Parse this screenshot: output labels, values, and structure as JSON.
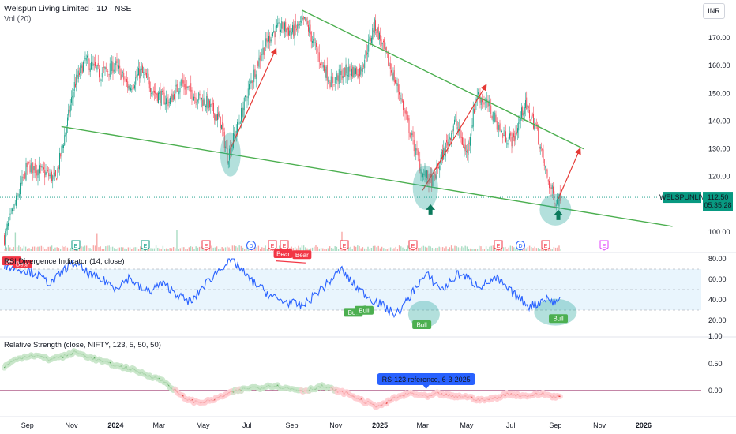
{
  "header": {
    "title": "Welspun Living Limited · 1D · NSE",
    "volume_label": "Vol (20)",
    "currency": "INR"
  },
  "price_tag": {
    "symbol": "WELSPUNLIV",
    "price": "112.50",
    "countdown": "05:35:28",
    "color": "#089981"
  },
  "colors": {
    "up": "#089981",
    "down": "#f23645",
    "trendline": "#4caf50",
    "arrow": "#e53935",
    "highlight": "#26a69a",
    "rsi_line": "#2962ff",
    "rsi_band": "#e3f2fd",
    "rs_zero": "#880e4f"
  },
  "chart_data": [
    {
      "type": "candlestick",
      "title": "Welspun Living Limited · 1D · NSE",
      "x_ticks": [
        "Sep",
        "Nov",
        "2024",
        "Mar",
        "May",
        "Jul",
        "Sep",
        "Nov",
        "2025",
        "Mar",
        "May",
        "Jul",
        "Sep",
        "Nov",
        "2026"
      ],
      "y_ticks": [
        100,
        110,
        120,
        130,
        140,
        150,
        160,
        170
      ],
      "ylim": [
        96,
        178
      ],
      "y_tick_labels": [
        "100.00",
        "110.00",
        "120.00",
        "130.00",
        "140.00",
        "150.00",
        "160.00",
        "170.00"
      ],
      "last_price": 112.5,
      "close_series": [
        {
          "date": "2023-07-31",
          "close": 98
        },
        {
          "date": "2023-08-15",
          "close": 110
        },
        {
          "date": "2023-09-01",
          "close": 124
        },
        {
          "date": "2023-09-20",
          "close": 122
        },
        {
          "date": "2023-10-10",
          "close": 119
        },
        {
          "date": "2023-10-25",
          "close": 138
        },
        {
          "date": "2023-11-05",
          "close": 153
        },
        {
          "date": "2023-11-20",
          "close": 162
        },
        {
          "date": "2023-12-10",
          "close": 157
        },
        {
          "date": "2024-01-01",
          "close": 160
        },
        {
          "date": "2024-01-20",
          "close": 152
        },
        {
          "date": "2024-02-05",
          "close": 158
        },
        {
          "date": "2024-02-25",
          "close": 150
        },
        {
          "date": "2024-03-15",
          "close": 147
        },
        {
          "date": "2024-04-01",
          "close": 154
        },
        {
          "date": "2024-04-20",
          "close": 149
        },
        {
          "date": "2024-05-05",
          "close": 147
        },
        {
          "date": "2024-05-25",
          "close": 140
        },
        {
          "date": "2024-06-04",
          "close": 127
        },
        {
          "date": "2024-06-20",
          "close": 140
        },
        {
          "date": "2024-07-05",
          "close": 153
        },
        {
          "date": "2024-07-20",
          "close": 164
        },
        {
          "date": "2024-08-05",
          "close": 172
        },
        {
          "date": "2024-08-20",
          "close": 174
        },
        {
          "date": "2024-09-01",
          "close": 172
        },
        {
          "date": "2024-09-20",
          "close": 176
        },
        {
          "date": "2024-10-10",
          "close": 162
        },
        {
          "date": "2024-10-25",
          "close": 154
        },
        {
          "date": "2024-11-15",
          "close": 158
        },
        {
          "date": "2024-12-05",
          "close": 158
        },
        {
          "date": "2024-12-25",
          "close": 175
        },
        {
          "date": "2025-01-10",
          "close": 163
        },
        {
          "date": "2025-01-28",
          "close": 150
        },
        {
          "date": "2025-02-15",
          "close": 133
        },
        {
          "date": "2025-03-01",
          "close": 121
        },
        {
          "date": "2025-03-15",
          "close": 118
        },
        {
          "date": "2025-04-01",
          "close": 130
        },
        {
          "date": "2025-04-15",
          "close": 140
        },
        {
          "date": "2025-05-01",
          "close": 128
        },
        {
          "date": "2025-05-15",
          "close": 150
        },
        {
          "date": "2025-06-01",
          "close": 145
        },
        {
          "date": "2025-06-20",
          "close": 135
        },
        {
          "date": "2025-07-05",
          "close": 133
        },
        {
          "date": "2025-07-20",
          "close": 146
        },
        {
          "date": "2025-08-05",
          "close": 138
        },
        {
          "date": "2025-08-20",
          "close": 120
        },
        {
          "date": "2025-09-01",
          "close": 111
        },
        {
          "date": "2025-09-08",
          "close": 112.5
        }
      ],
      "annotations": {
        "trendlines": [
          {
            "from": {
              "date": "2023-10-18",
              "price": 138
            },
            "to": {
              "date": "2026-02-10",
              "price": 102
            }
          },
          {
            "from": {
              "date": "2024-09-15",
              "price": 180
            },
            "to": {
              "date": "2025-10-10",
              "price": 130
            }
          }
        ],
        "arrows": [
          {
            "from": {
              "date": "2024-06-08",
              "price": 130
            },
            "to": {
              "date": "2024-08-10",
              "price": 166
            }
          },
          {
            "from": {
              "date": "2025-03-01",
              "price": 115
            },
            "to": {
              "date": "2025-05-28",
              "price": 153
            }
          },
          {
            "from": {
              "date": "2025-09-05",
              "price": 112
            },
            "to": {
              "date": "2025-10-05",
              "price": 130
            }
          }
        ],
        "event_markers": [
          "E",
          "E",
          "E",
          "D",
          "E",
          "E",
          "E",
          "E",
          "E",
          "D",
          "E",
          "E"
        ]
      }
    },
    {
      "type": "line",
      "title": "RSI Divergence Indicator (14, close)",
      "y_ticks": [
        20,
        40,
        60,
        80
      ],
      "y_tick_labels": [
        "20.00",
        "40.00",
        "60.00",
        "80.00"
      ],
      "ylim": [
        17,
        83
      ],
      "band": [
        30,
        70
      ],
      "labels": [
        {
          "text": "Bear",
          "date": "2023-08-10",
          "value": 73
        },
        {
          "text": "Bear",
          "date": "2023-08-25",
          "value": 70
        },
        {
          "text": "Bear",
          "date": "2024-08-20",
          "value": 80
        },
        {
          "text": "Bear",
          "date": "2024-09-15",
          "value": 79
        },
        {
          "text": "Bull",
          "date": "2024-11-25",
          "value": 32
        },
        {
          "text": "Bull",
          "date": "2024-12-10",
          "value": 34
        },
        {
          "text": "Bull",
          "date": "2025-02-28",
          "value": 20
        },
        {
          "text": "Bull",
          "date": "2025-09-05",
          "value": 26
        }
      ],
      "values_weekly": [
        74,
        72,
        70,
        68,
        66,
        60,
        56,
        64,
        72,
        76,
        70,
        64,
        60,
        58,
        52,
        56,
        62,
        54,
        48,
        50,
        56,
        52,
        46,
        40,
        38,
        50,
        58,
        66,
        74,
        78,
        72,
        62,
        56,
        50,
        44,
        40,
        38,
        36,
        34,
        40,
        48,
        54,
        62,
        70,
        60,
        52,
        46,
        40,
        36,
        30,
        26,
        34,
        46,
        58,
        64,
        56,
        50,
        58,
        66,
        62,
        56,
        54,
        58,
        60,
        52,
        46,
        40,
        34,
        36,
        42,
        38,
        40
      ]
    },
    {
      "type": "line",
      "title": "Relative Strength (close, NIFTY, 123, 5, 50, 50)",
      "y_ticks": [
        0,
        0.5
      ],
      "y_tick_labels": [
        "0.00",
        "0.50"
      ],
      "ylim": [
        -0.45,
        1.0
      ],
      "tooltip": "RS-123 reference, 6-3-2025",
      "values_weekly": [
        0.45,
        0.55,
        0.62,
        0.66,
        0.64,
        0.58,
        0.62,
        0.65,
        0.72,
        0.66,
        0.6,
        0.55,
        0.5,
        0.45,
        0.42,
        0.36,
        0.3,
        0.25,
        0.18,
        0.05,
        -0.1,
        -0.18,
        -0.22,
        -0.2,
        -0.15,
        -0.08,
        -0.02,
        0.02,
        0.06,
        0.05,
        0.1,
        0.08,
        0.04,
        0.02,
        0.0,
        0.04,
        0.08,
        0.03,
        -0.02,
        -0.06,
        -0.15,
        -0.22,
        -0.28,
        -0.26,
        -0.15,
        -0.1,
        -0.05,
        -0.08,
        -0.12,
        -0.06,
        -0.08,
        -0.12,
        -0.1,
        -0.14,
        -0.18,
        -0.16,
        -0.12,
        -0.06,
        -0.08,
        -0.1,
        -0.08,
        -0.06,
        -0.1,
        -0.12
      ]
    }
  ]
}
